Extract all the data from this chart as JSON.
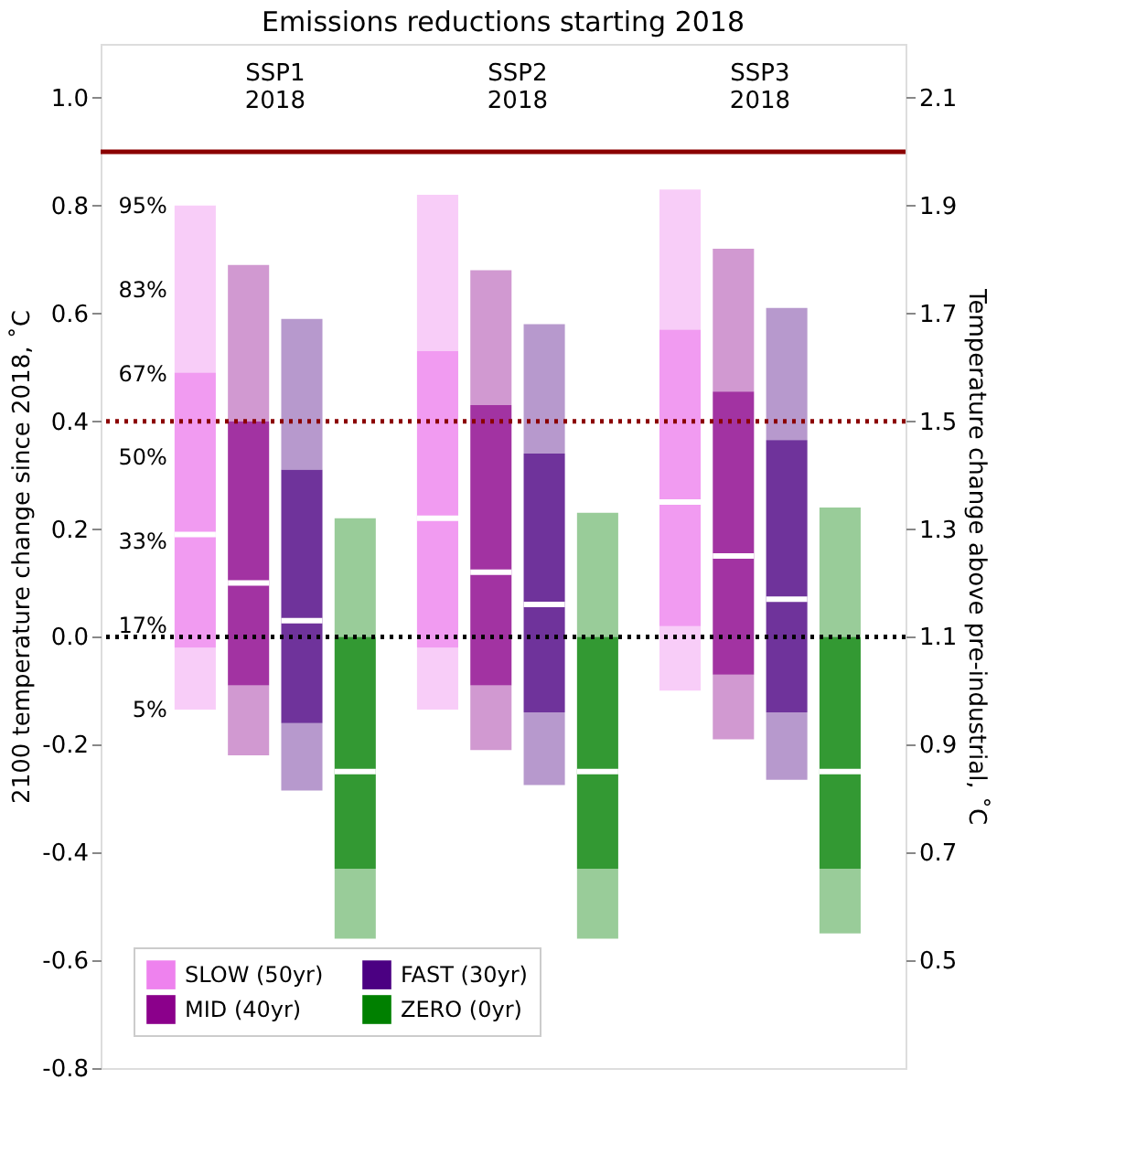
{
  "chart_data": {
    "type": "box",
    "title": "Emissions reductions starting 2018",
    "ylabel": "2100 temperature change since 2018, ˚C",
    "y2label": "Temperature change above pre-industrial, ˚C",
    "categories": [
      "SSP1\n2018",
      "SSP2\n2018",
      "SSP3\n2018"
    ],
    "series": [
      {
        "name": "SLOW (50yr)",
        "color": "#ee82ee",
        "boxes": [
          {
            "low": -0.135,
            "q1": -0.02,
            "median": 0.19,
            "q3": 0.49,
            "high": 0.8
          },
          {
            "low": -0.135,
            "q1": -0.02,
            "median": 0.22,
            "q3": 0.53,
            "high": 0.82
          },
          {
            "low": -0.1,
            "q1": 0.02,
            "median": 0.25,
            "q3": 0.57,
            "high": 0.83
          }
        ]
      },
      {
        "name": "MID (40yr)",
        "color": "#8b008b",
        "boxes": [
          {
            "low": -0.22,
            "q1": -0.09,
            "median": 0.1,
            "q3": 0.4,
            "high": 0.69
          },
          {
            "low": -0.21,
            "q1": -0.09,
            "median": 0.12,
            "q3": 0.43,
            "high": 0.68
          },
          {
            "low": -0.19,
            "q1": -0.07,
            "median": 0.15,
            "q3": 0.455,
            "high": 0.72
          }
        ]
      },
      {
        "name": "FAST (30yr)",
        "color": "#4b0082",
        "boxes": [
          {
            "low": -0.285,
            "q1": -0.16,
            "median": 0.03,
            "q3": 0.31,
            "high": 0.59
          },
          {
            "low": -0.275,
            "q1": -0.14,
            "median": 0.06,
            "q3": 0.34,
            "high": 0.58
          },
          {
            "low": -0.265,
            "q1": -0.14,
            "median": 0.07,
            "q3": 0.365,
            "high": 0.61
          }
        ]
      },
      {
        "name": "ZERO (0yr)",
        "color": "#008000",
        "boxes": [
          {
            "low": -0.56,
            "q1": -0.43,
            "median": -0.25,
            "q3": 0.0,
            "high": 0.22
          },
          {
            "low": -0.56,
            "q1": -0.43,
            "median": -0.25,
            "q3": 0.0,
            "high": 0.23
          },
          {
            "low": -0.55,
            "q1": -0.43,
            "median": -0.25,
            "q3": 0.0,
            "high": 0.24
          }
        ]
      }
    ],
    "ylim": [
      -0.8,
      1.1
    ],
    "yticks": [
      -0.8,
      -0.6,
      -0.4,
      -0.2,
      {
        "value": 0,
        "label": "0.0"
      },
      0.2,
      0.4,
      0.6,
      0.8,
      {
        "value": 1,
        "label": "1.0"
      }
    ],
    "y2lim": [
      0.3,
      2.2
    ],
    "y2ticks": [
      0.5,
      0.7,
      0.9,
      1.1,
      1.3,
      1.5,
      1.7,
      1.9,
      2.1
    ],
    "ref_lines": [
      {
        "axis": "y",
        "value": 0.9,
        "color": "#8b0000",
        "line_style": "solid"
      },
      {
        "axis": "y",
        "value": 0.4,
        "color": "#8b0000",
        "line_style": "dotted"
      },
      {
        "axis": "y",
        "value": 0.0,
        "color": "#000000",
        "line_style": "dotted"
      }
    ],
    "annotations": [
      "95%",
      "83%",
      "67%",
      "50%",
      "33%",
      "17%",
      "5%"
    ],
    "legend": "bottom left",
    "grid": false
  }
}
